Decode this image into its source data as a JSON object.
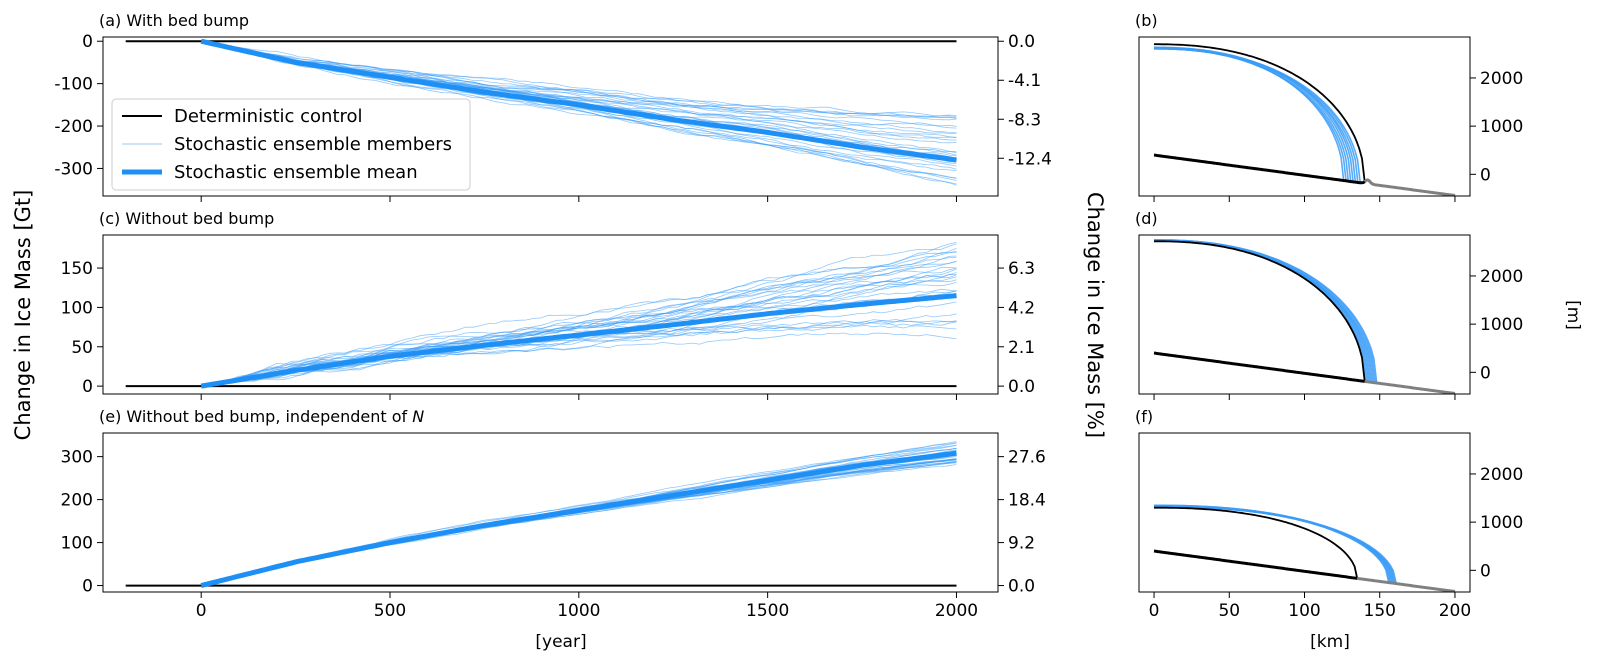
{
  "figure": {
    "left_ylabel": "Change in Ice Mass [Gt]",
    "right_ylabel": "Change in Ice Mass [%]",
    "time_xlabel": "[year]",
    "profile_xlabel": "[km]",
    "profile_ylabel": "[m]"
  },
  "legend": {
    "placement": "lower-left of panel (a)",
    "entries": [
      {
        "label": "Deterministic control",
        "color": "#000000",
        "style": "thin"
      },
      {
        "label": "Stochastic ensemble members",
        "color": "#9fcaf7",
        "style": "hairline"
      },
      {
        "label": "Stochastic ensemble mean",
        "color": "#1e8ff5",
        "style": "thick"
      }
    ]
  },
  "colors": {
    "control": "#000000",
    "member": "#3b9cf7",
    "mean": "#1e8ff5",
    "bed_grounded": "#000000",
    "bed_ocean": "#808080"
  },
  "chart_data": [
    {
      "id": "a",
      "type": "line",
      "title": "(a) With bed bump",
      "xlim": [
        -260,
        2110
      ],
      "ylim": [
        -365,
        10
      ],
      "xticks": [
        0,
        500,
        1000,
        1500,
        2000
      ],
      "yticks": [
        0,
        -100,
        -200,
        -300
      ],
      "ytick_labels": [
        "0",
        "-100",
        "-200",
        "-300"
      ],
      "right_ticks": [
        0,
        -92,
        -184,
        -276
      ],
      "right_tick_labels": [
        "0.0",
        "-4.1",
        "-8.3",
        "-12.4"
      ],
      "control": {
        "x": [
          -200,
          0,
          2000
        ],
        "y": [
          0,
          0,
          0
        ]
      },
      "mean": {
        "x": [
          0,
          250,
          500,
          750,
          1000,
          1250,
          1500,
          1750,
          2000
        ],
        "y": [
          0,
          -50,
          -85,
          -120,
          -150,
          -185,
          -215,
          -250,
          -280
        ]
      },
      "members": {
        "count": 30,
        "spread_end": [
          -340,
          -182
        ],
        "noise": 9
      },
      "show_xticklabels": false
    },
    {
      "id": "c",
      "type": "line",
      "title": "(c) Without bed bump",
      "xlim": [
        -260,
        2110
      ],
      "ylim": [
        -10,
        192
      ],
      "xticks": [
        0,
        500,
        1000,
        1500,
        2000
      ],
      "yticks": [
        0,
        50,
        100,
        150
      ],
      "ytick_labels": [
        "0",
        "50",
        "100",
        "150"
      ],
      "right_ticks": [
        0,
        50,
        100,
        150
      ],
      "right_tick_labels": [
        "0.0",
        "2.1",
        "4.2",
        "6.3"
      ],
      "control": {
        "x": [
          -200,
          0,
          2000
        ],
        "y": [
          0,
          0,
          0
        ]
      },
      "mean": {
        "x": [
          0,
          250,
          500,
          750,
          1000,
          1250,
          1500,
          1750,
          2000
        ],
        "y": [
          0,
          20,
          38,
          52,
          65,
          78,
          92,
          104,
          115
        ]
      },
      "members": {
        "count": 30,
        "spread_end": [
          52,
          188
        ],
        "noise": 8
      },
      "show_xticklabels": false
    },
    {
      "id": "e",
      "type": "line",
      "title": "(e) Without bed bump, independent of ",
      "title_math": "N",
      "xlim": [
        -260,
        2110
      ],
      "ylim": [
        -15,
        355
      ],
      "xticks": [
        0,
        500,
        1000,
        1500,
        2000
      ],
      "xtick_labels": [
        "0",
        "500",
        "1000",
        "1500",
        "2000"
      ],
      "yticks": [
        0,
        100,
        200,
        300
      ],
      "ytick_labels": [
        "0",
        "100",
        "200",
        "300"
      ],
      "right_ticks": [
        0,
        100,
        200,
        300
      ],
      "right_tick_labels": [
        "0.0",
        "9.2",
        "18.4",
        "27.6"
      ],
      "control": {
        "x": [
          -200,
          0,
          2000
        ],
        "y": [
          0,
          0,
          0
        ]
      },
      "mean": {
        "x": [
          0,
          250,
          500,
          750,
          1000,
          1250,
          1500,
          1750,
          2000
        ],
        "y": [
          0,
          55,
          100,
          140,
          175,
          210,
          245,
          280,
          308
        ]
      },
      "members": {
        "count": 30,
        "spread_end": [
          275,
          335
        ],
        "noise": 4
      },
      "show_xticklabels": true
    },
    {
      "id": "b",
      "type": "line",
      "title": "(b)",
      "xlim": [
        -10,
        210
      ],
      "ylim": [
        -450,
        2850
      ],
      "xticks": [
        0,
        50,
        100,
        150,
        200
      ],
      "yticks": [
        0,
        1000,
        2000
      ],
      "ytick_labels": [
        "0",
        "1000",
        "2000"
      ],
      "bed": {
        "x0": 0,
        "y0": 400,
        "slope": -4.2,
        "bump_at": 142
      },
      "control_surface": {
        "h0": 2700,
        "terminus_km": 140
      },
      "member_surface": {
        "h0": 2620,
        "terminus_range": [
          126,
          137
        ],
        "count": 8
      },
      "show_xticklabels": false
    },
    {
      "id": "d",
      "type": "line",
      "title": "(d)",
      "xlim": [
        -10,
        210
      ],
      "ylim": [
        -450,
        2850
      ],
      "xticks": [
        0,
        50,
        100,
        150,
        200
      ],
      "yticks": [
        0,
        1000,
        2000
      ],
      "ytick_labels": [
        "0",
        "1000",
        "2000"
      ],
      "bed": {
        "x0": 0,
        "y0": 400,
        "slope": -4.2
      },
      "control_surface": {
        "h0": 2720,
        "terminus_km": 140
      },
      "member_surface": {
        "h0": 2740,
        "terminus_range": [
          141,
          148
        ],
        "count": 8
      },
      "show_xticklabels": false
    },
    {
      "id": "f",
      "type": "line",
      "title": "(f)",
      "xlim": [
        -10,
        210
      ],
      "ylim": [
        -450,
        2850
      ],
      "xticks": [
        0,
        50,
        100,
        150,
        200
      ],
      "xtick_labels": [
        "0",
        "50",
        "100",
        "150",
        "200"
      ],
      "yticks": [
        0,
        1000,
        2000
      ],
      "ytick_labels": [
        "0",
        "1000",
        "2000"
      ],
      "bed": {
        "x0": 0,
        "y0": 400,
        "slope": -4.2
      },
      "control_surface": {
        "h0": 1300,
        "terminus_km": 135
      },
      "member_surface": {
        "h0": 1340,
        "terminus_range": [
          156,
          161
        ],
        "count": 8
      },
      "show_xticklabels": true
    }
  ]
}
